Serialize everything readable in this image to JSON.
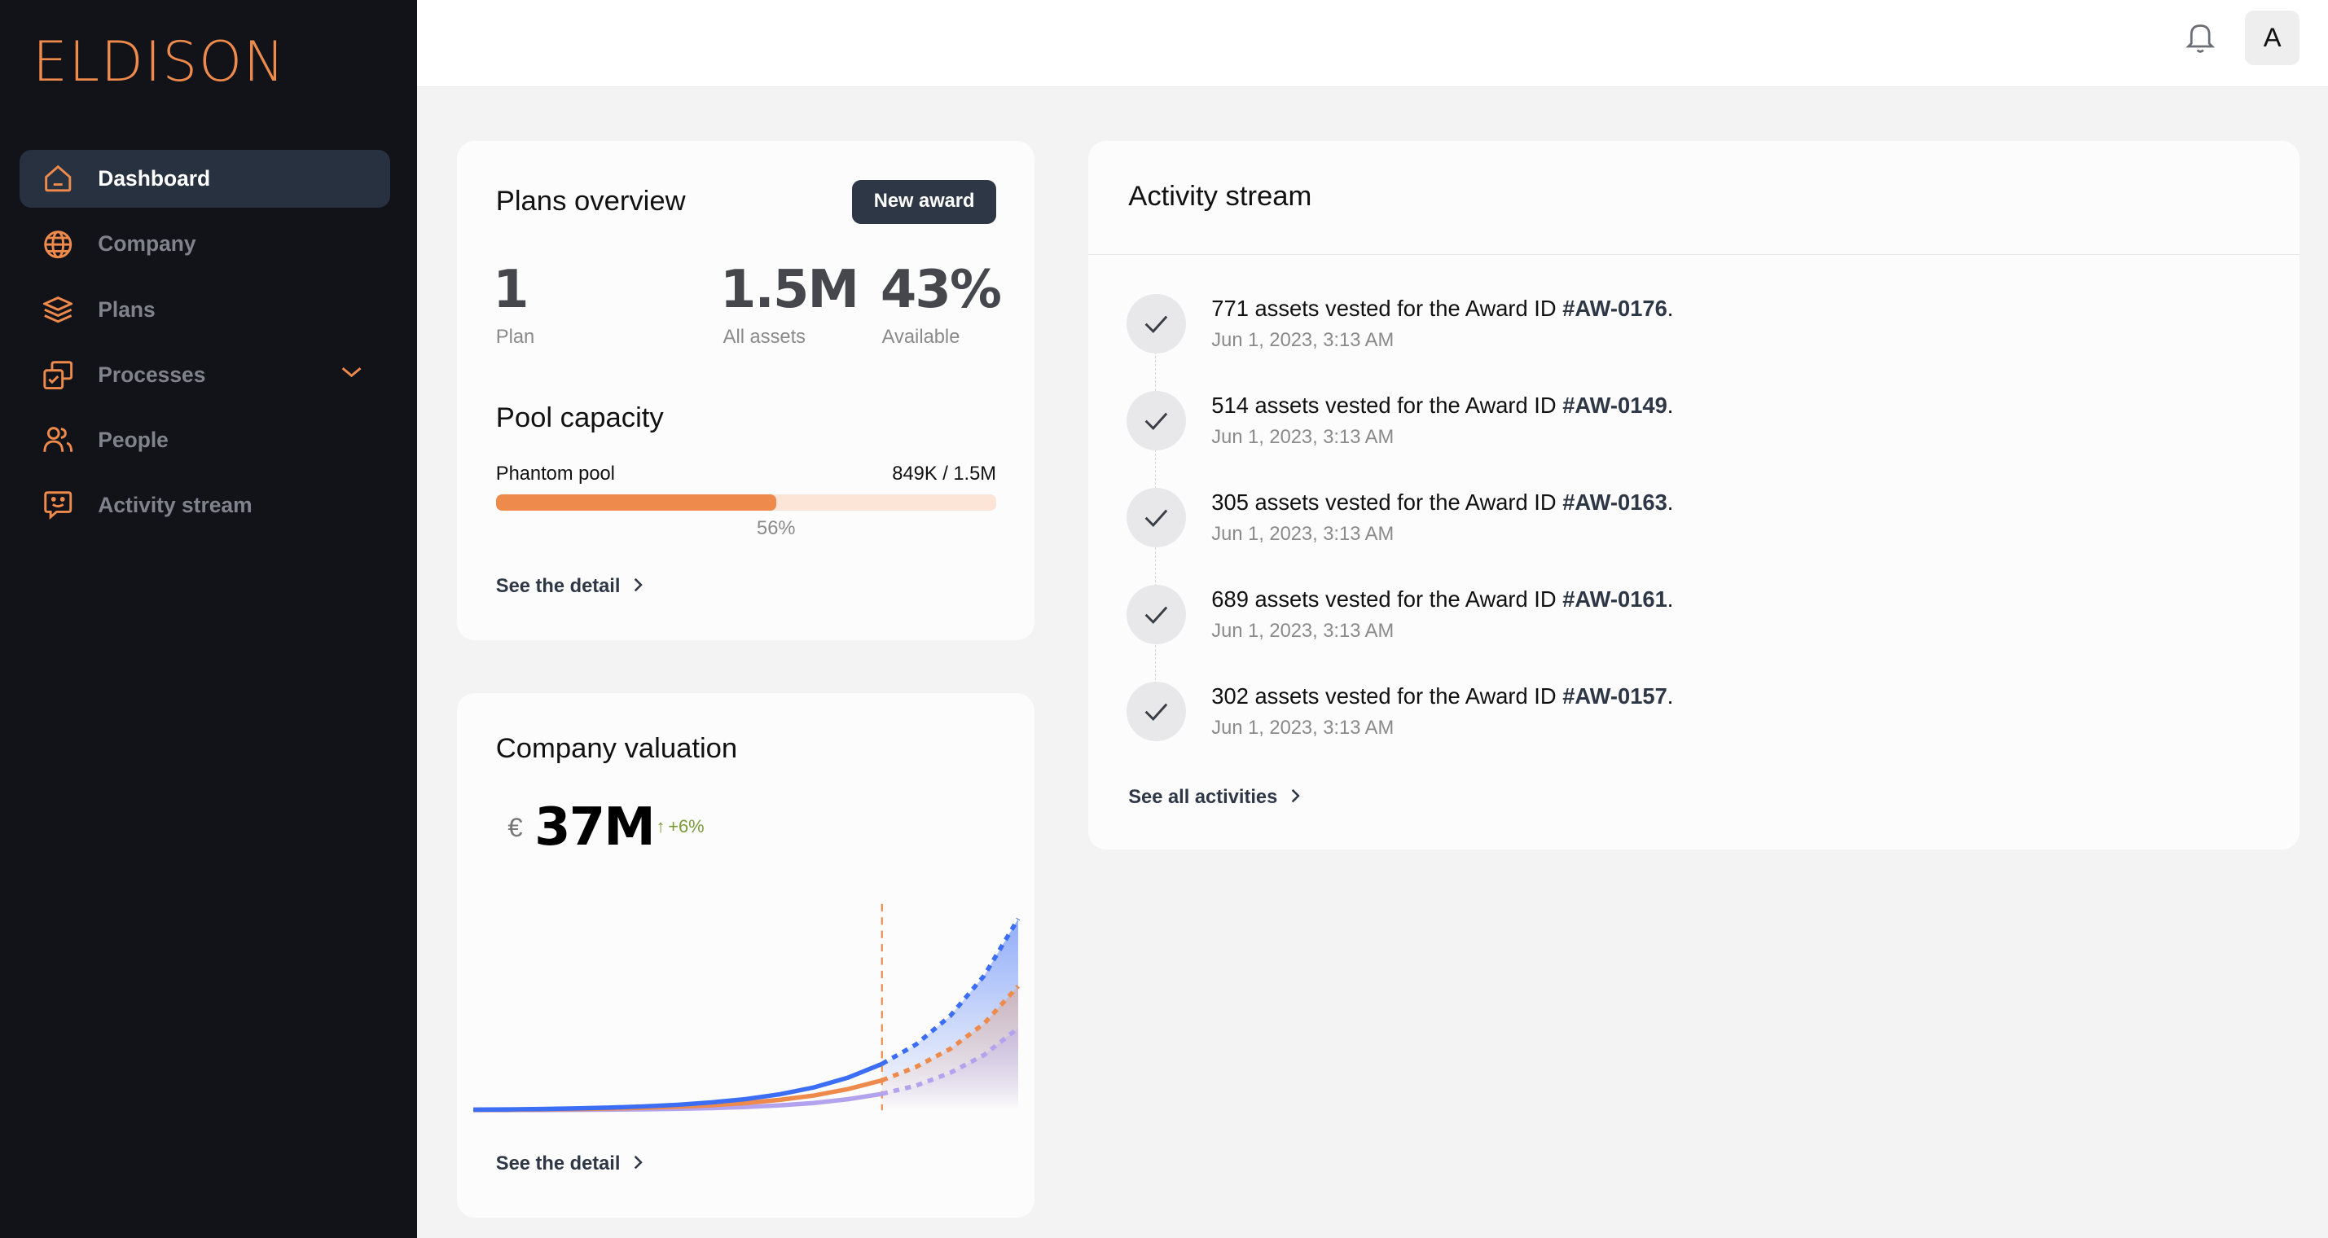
{
  "brand": {
    "logo_text": "ELDISON",
    "accent": "#ee8a4c"
  },
  "sidebar": {
    "items": [
      {
        "label": "Dashboard",
        "icon": "home-icon",
        "active": true
      },
      {
        "label": "Company",
        "icon": "globe-icon"
      },
      {
        "label": "Plans",
        "icon": "layers-icon"
      },
      {
        "label": "Processes",
        "icon": "processes-icon",
        "has_submenu": true
      },
      {
        "label": "People",
        "icon": "people-icon"
      },
      {
        "label": "Activity stream",
        "icon": "chat-smile-icon"
      }
    ]
  },
  "topbar": {
    "notification_icon": "bell-icon",
    "avatar_initial": "A"
  },
  "plans_overview": {
    "title": "Plans overview",
    "new_award_label": "New award",
    "stats": [
      {
        "value": "1",
        "label": "Plan"
      },
      {
        "value": "1.5M",
        "label": "All assets"
      },
      {
        "value": "43%",
        "label": "Available"
      }
    ],
    "pool_title": "Pool capacity",
    "pool": {
      "name": "Phantom pool",
      "amount": "849K / 1.5M",
      "percent_label": "56%",
      "fill_percent": 56,
      "fill_color": "#ee8a4c",
      "track_color": "#fce4d6"
    },
    "detail_link": "See the detail"
  },
  "valuation": {
    "title": "Company valuation",
    "currency": "€",
    "value": "37M",
    "change": "+6%",
    "change_color": "#7a9a3a",
    "detail_link": "See the detail"
  },
  "chart_data": {
    "type": "line",
    "x": [
      0,
      1,
      2,
      3,
      4,
      5,
      6,
      7,
      8,
      9,
      10,
      11,
      12,
      13,
      14,
      15,
      16
    ],
    "forecast_start_index": 12,
    "series": [
      {
        "color": "#3b6ef5",
        "values": [
          0.44,
          0.62,
          0.89,
          1.27,
          1.81,
          2.6,
          3.7,
          5.3,
          7.5,
          10.7,
          15.3,
          21.8,
          31,
          44,
          63,
          90,
          128
        ]
      },
      {
        "color": "#ee8a4c",
        "values": [
          0.29,
          0.4,
          0.58,
          0.83,
          1.2,
          1.7,
          2.4,
          3.4,
          4.9,
          7.0,
          9.9,
          14.2,
          20,
          29,
          41,
          58,
          83
        ]
      },
      {
        "color": "#b3a3ee",
        "values": [
          0.09,
          0.13,
          0.2,
          0.3,
          0.44,
          0.66,
          1.0,
          1.5,
          2.2,
          3.3,
          4.9,
          7.4,
          11,
          16.5,
          25,
          37,
          55
        ]
      }
    ],
    "ylim": [
      0,
      130
    ],
    "grid": false,
    "axes_visible": false
  },
  "activity": {
    "title": "Activity stream",
    "items": [
      {
        "text": "771 assets vested for the Award ID ",
        "award_id": "#AW-0176",
        "suffix": ".",
        "time": "Jun 1, 2023, 3:13 AM"
      },
      {
        "text": "514 assets vested for the Award ID ",
        "award_id": "#AW-0149",
        "suffix": ".",
        "time": "Jun 1, 2023, 3:13 AM"
      },
      {
        "text": "305 assets vested for the Award ID ",
        "award_id": "#AW-0163",
        "suffix": ".",
        "time": "Jun 1, 2023, 3:13 AM"
      },
      {
        "text": "689 assets vested for the Award ID ",
        "award_id": "#AW-0161",
        "suffix": ".",
        "time": "Jun 1, 2023, 3:13 AM"
      },
      {
        "text": "302 assets vested for the Award ID ",
        "award_id": "#AW-0157",
        "suffix": ".",
        "time": "Jun 1, 2023, 3:13 AM"
      }
    ],
    "see_all_link": "See all activities"
  }
}
